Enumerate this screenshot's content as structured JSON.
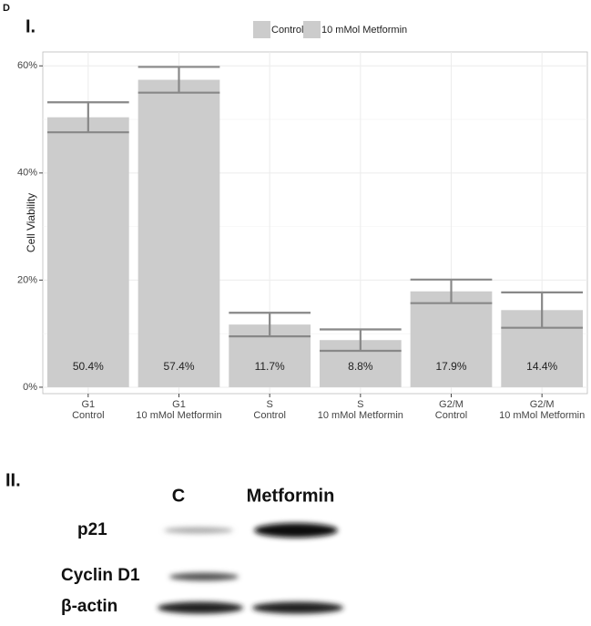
{
  "panel_label": "D",
  "section_1": "I.",
  "chart_data": {
    "type": "bar",
    "y_label": "Cell Viability",
    "legend": [
      "Control",
      "10 mMol Metformin"
    ],
    "legend_color": "#cccccc",
    "categories": [
      [
        "G1",
        "Control"
      ],
      [
        "G1",
        "10 mMol Metformin"
      ],
      [
        "S",
        "Control"
      ],
      [
        "S",
        "10 mMol Metformin"
      ],
      [
        "G2/M",
        "Control"
      ],
      [
        "G2/M",
        "10 mMol Metformin"
      ]
    ],
    "values": [
      50.4,
      57.4,
      11.7,
      8.8,
      17.9,
      14.4
    ],
    "value_labels": [
      "50.4%",
      "57.4%",
      "11.7%",
      "8.8%",
      "17.9%",
      "14.4%"
    ],
    "errors": [
      2.8,
      2.4,
      2.2,
      2.0,
      2.2,
      3.3
    ],
    "color": "#cccccc",
    "error_color": "#888888",
    "ylim": [
      -1.2,
      62.6
    ],
    "yticks": [
      {
        "value": 0,
        "label": "0%"
      },
      {
        "value": 20,
        "label": "20%"
      },
      {
        "value": 40,
        "label": "40%"
      },
      {
        "value": 60,
        "label": "60%"
      }
    ],
    "minor_yticks": [
      10,
      30,
      50
    ],
    "grid": true
  },
  "section_2": "II.",
  "blot": {
    "columns": [
      "C",
      "Metformin"
    ],
    "rows": [
      "p21",
      "Cyclin D1",
      "β-actin"
    ]
  }
}
